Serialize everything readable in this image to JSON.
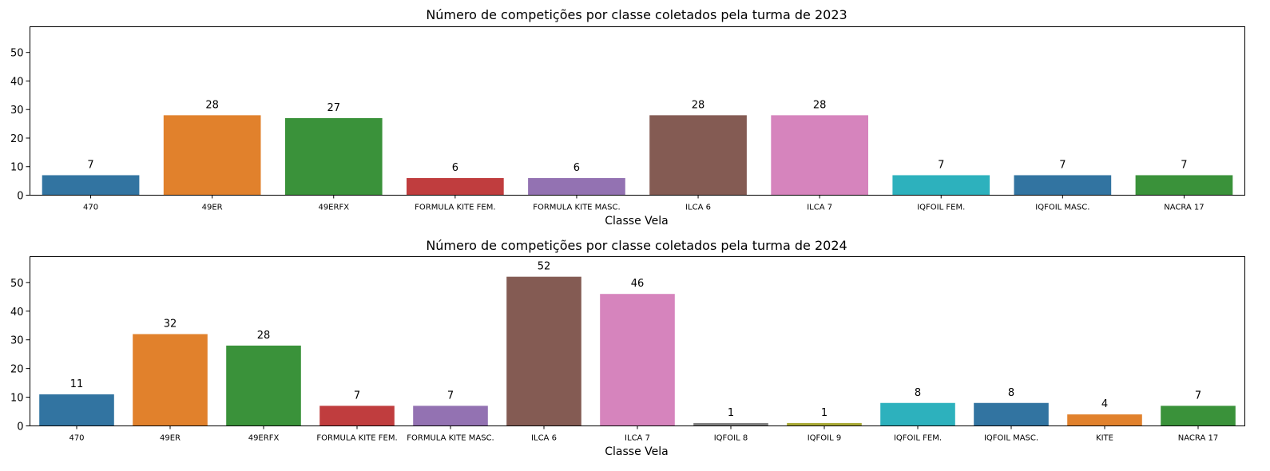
{
  "chart_data": [
    {
      "type": "bar",
      "title": "Número de competições por classe coletados pela turma de 2023",
      "xlabel": "Classe Vela",
      "ylabel": "",
      "ylim": [
        0,
        59
      ],
      "yticks": [
        0,
        10,
        20,
        30,
        40,
        50
      ],
      "grid": false,
      "categories": [
        "470",
        "49ER",
        "49ERFX",
        "FORMULA KITE FEM.",
        "FORMULA KITE MASC.",
        "ILCA 6",
        "ILCA 7",
        "IQFOIL FEM.",
        "IQFOIL MASC.",
        "NACRA 17"
      ],
      "values": [
        7,
        28,
        27,
        6,
        6,
        28,
        28,
        7,
        7,
        7
      ],
      "colors": [
        "#3274a1",
        "#e1812c",
        "#3a923a",
        "#c03d3e",
        "#9372b2",
        "#845b53",
        "#d684bd",
        "#2db1bd",
        "#3274a1",
        "#3a923a"
      ]
    },
    {
      "type": "bar",
      "title": "Número de competições por classe coletados pela turma de 2024",
      "xlabel": "Classe Vela",
      "ylabel": "",
      "ylim": [
        0,
        59
      ],
      "yticks": [
        0,
        10,
        20,
        30,
        40,
        50
      ],
      "grid": false,
      "categories": [
        "470",
        "49ER",
        "49ERFX",
        "FORMULA KITE FEM.",
        "FORMULA KITE MASC.",
        "ILCA 6",
        "ILCA 7",
        "IQFOIL 8",
        "IQFOIL 9",
        "IQFOIL FEM.",
        "IQFOIL MASC.",
        "KITE",
        "NACRA 17"
      ],
      "values": [
        11,
        32,
        28,
        7,
        7,
        52,
        46,
        1,
        1,
        8,
        8,
        4,
        7
      ],
      "colors": [
        "#3274a1",
        "#e1812c",
        "#3a923a",
        "#c03d3e",
        "#9372b2",
        "#845b53",
        "#d684bd",
        "#7f7f7f",
        "#a9aa35",
        "#2db1bd",
        "#3274a1",
        "#e1812c",
        "#3a923a"
      ]
    }
  ]
}
